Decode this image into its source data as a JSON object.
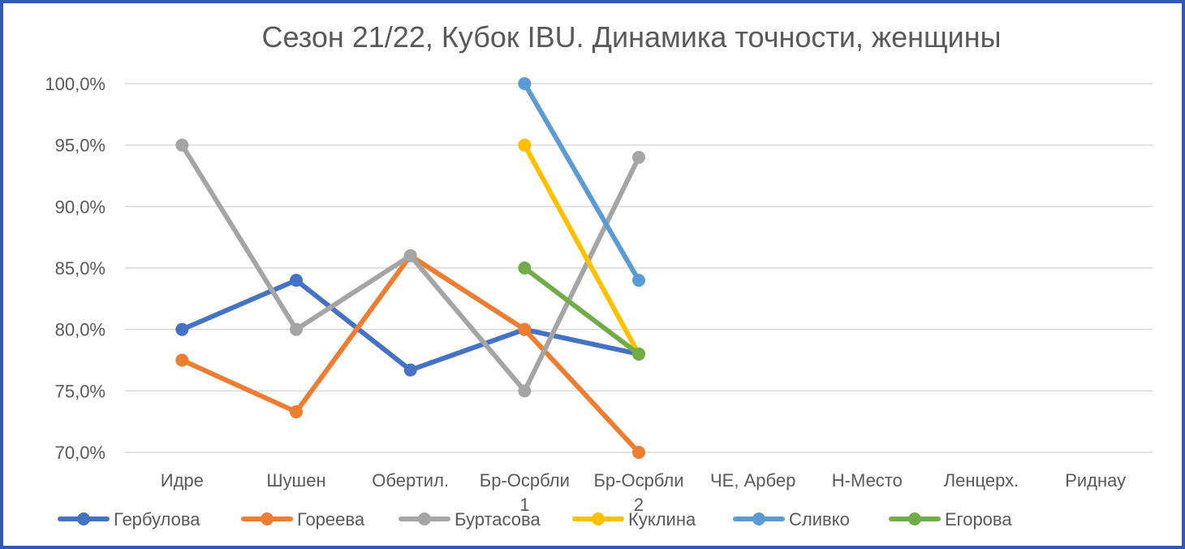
{
  "chart_data": {
    "type": "line",
    "title": "Сезон 21/22, Кубок IBU. Динамика точности, женщины",
    "xlabel": "",
    "ylabel": "",
    "categories": [
      [
        "Идре"
      ],
      [
        "Шушен"
      ],
      [
        "Обертил."
      ],
      [
        "Бр-Осрбли",
        "1"
      ],
      [
        "Бр-Осрбли",
        "2"
      ],
      [
        "ЧЕ, Арбер"
      ],
      [
        "Н-Место"
      ],
      [
        "Ленцерх."
      ],
      [
        "Риднау"
      ]
    ],
    "ylim": [
      0.7,
      1.0
    ],
    "yticks": [
      {
        "value": 1.0,
        "label": "100,0%"
      },
      {
        "value": 0.95,
        "label": "95,0%"
      },
      {
        "value": 0.9,
        "label": "90,0%"
      },
      {
        "value": 0.85,
        "label": "85,0%"
      },
      {
        "value": 0.8,
        "label": "80,0%"
      },
      {
        "value": 0.75,
        "label": "75,0%"
      },
      {
        "value": 0.7,
        "label": "70,0%"
      }
    ],
    "grid": true,
    "legend_position": "bottom",
    "series": [
      {
        "name": "Гербулова",
        "color": "#4472c4",
        "values": [
          0.8,
          0.84,
          0.767,
          0.8,
          0.78,
          null,
          null,
          null,
          null
        ]
      },
      {
        "name": "Гореева",
        "color": "#ed7d31",
        "values": [
          0.775,
          0.733,
          0.86,
          0.8,
          0.7,
          null,
          null,
          null,
          null
        ]
      },
      {
        "name": "Буртасова",
        "color": "#a5a5a5",
        "values": [
          0.95,
          0.8,
          0.86,
          0.75,
          0.94,
          null,
          null,
          null,
          null
        ]
      },
      {
        "name": "Куклина",
        "color": "#ffc000",
        "values": [
          null,
          null,
          null,
          0.95,
          0.78,
          null,
          null,
          null,
          null
        ]
      },
      {
        "name": "Сливко",
        "color": "#5b9bd5",
        "values": [
          null,
          null,
          null,
          1.0,
          0.84,
          null,
          null,
          null,
          null
        ]
      },
      {
        "name": "Егорова",
        "color": "#70ad47",
        "values": [
          null,
          null,
          null,
          0.85,
          0.78,
          null,
          null,
          null,
          null
        ]
      }
    ]
  }
}
